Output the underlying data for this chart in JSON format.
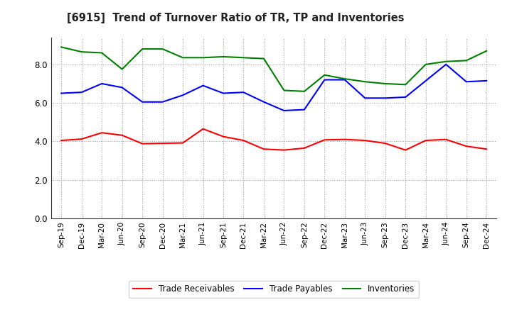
{
  "title": "[6915]  Trend of Turnover Ratio of TR, TP and Inventories",
  "x_labels": [
    "Sep-19",
    "Dec-19",
    "Mar-20",
    "Jun-20",
    "Sep-20",
    "Dec-20",
    "Mar-21",
    "Jun-21",
    "Sep-21",
    "Dec-21",
    "Mar-22",
    "Jun-22",
    "Sep-22",
    "Dec-22",
    "Mar-23",
    "Jun-23",
    "Sep-23",
    "Dec-23",
    "Mar-24",
    "Jun-24",
    "Sep-24",
    "Dec-24"
  ],
  "trade_receivables": [
    4.05,
    4.12,
    4.45,
    4.32,
    3.88,
    3.9,
    3.92,
    4.65,
    4.25,
    4.05,
    3.6,
    3.55,
    3.65,
    4.08,
    4.1,
    4.05,
    3.9,
    3.55,
    4.05,
    4.1,
    3.75,
    3.6
  ],
  "trade_payables": [
    6.5,
    6.55,
    7.0,
    6.8,
    6.05,
    6.05,
    6.4,
    6.9,
    6.5,
    6.55,
    6.05,
    5.6,
    5.65,
    7.2,
    7.2,
    6.25,
    6.25,
    6.3,
    7.15,
    8.0,
    7.1,
    7.15
  ],
  "inventories": [
    8.9,
    8.65,
    8.6,
    7.75,
    8.8,
    8.8,
    8.35,
    8.35,
    8.4,
    8.35,
    8.3,
    6.65,
    6.6,
    7.45,
    7.25,
    7.1,
    7.0,
    6.95,
    8.0,
    8.15,
    8.2,
    8.7
  ],
  "line_colors": {
    "trade_receivables": "#ff0000",
    "trade_payables": "#0000ff",
    "inventories": "#008000"
  },
  "ylim": [
    0.0,
    9.4
  ],
  "yticks": [
    0.0,
    2.0,
    4.0,
    6.0,
    8.0
  ],
  "legend_labels": [
    "Trade Receivables",
    "Trade Payables",
    "Inventories"
  ],
  "background_color": "#ffffff",
  "grid_color": "#999999"
}
